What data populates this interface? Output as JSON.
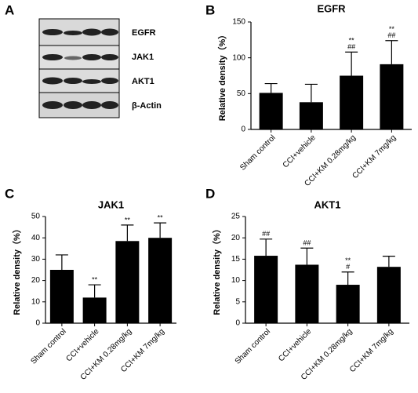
{
  "blot": {
    "panel": "A",
    "labels": [
      "EGFR",
      "JAK1",
      "AKT1",
      "β-Actin"
    ]
  },
  "chart_data": [
    {
      "type": "bar",
      "panel": "B",
      "title": "EGFR",
      "y_label": "Relative density（%）",
      "categories": [
        "Sham control",
        "CCI+vehicle",
        "CCI+KM 0.28mg/kg",
        "CCI+KM 7mg/kg"
      ],
      "values": [
        51,
        38,
        75,
        91
      ],
      "errors": [
        13,
        25,
        33,
        33
      ],
      "color": "#000000",
      "annotations": [
        null,
        null,
        [
          "**",
          "##"
        ],
        [
          "**",
          "##"
        ]
      ],
      "ylim": [
        0,
        150
      ],
      "yticks": [
        0,
        50,
        100,
        150
      ]
    },
    {
      "type": "bar",
      "panel": "C",
      "title": "JAK1",
      "y_label": "Relative density（%）",
      "categories": [
        "Sham control",
        "CCI+vehicle",
        "CCI+KM 0.28mg/kg",
        "CCI+KM 7mg/kg"
      ],
      "values": [
        25,
        12,
        38.5,
        40
      ],
      "errors": [
        7,
        6,
        7.5,
        7
      ],
      "color": "#000000",
      "annotations": [
        null,
        [
          "**"
        ],
        [
          "**"
        ],
        [
          "**"
        ]
      ],
      "ylim": [
        0,
        50
      ],
      "yticks": [
        0,
        10,
        20,
        30,
        40,
        50
      ]
    },
    {
      "type": "bar",
      "panel": "D",
      "title": "AKT1",
      "y_label": "Relative density（%）",
      "categories": [
        "Sham control",
        "CCI+vehicle",
        "CCI+KM 0.28mg/kg",
        "CCI+KM 7mg/kg"
      ],
      "values": [
        15.8,
        13.7,
        9,
        13.2
      ],
      "errors": [
        3.9,
        3.9,
        3,
        2.5
      ],
      "color": "#000000",
      "annotations": [
        [
          "##"
        ],
        [
          "##"
        ],
        [
          "**",
          "#"
        ],
        null
      ],
      "ylim": [
        0,
        25
      ],
      "yticks": [
        0,
        5,
        10,
        15,
        20,
        25
      ]
    }
  ]
}
